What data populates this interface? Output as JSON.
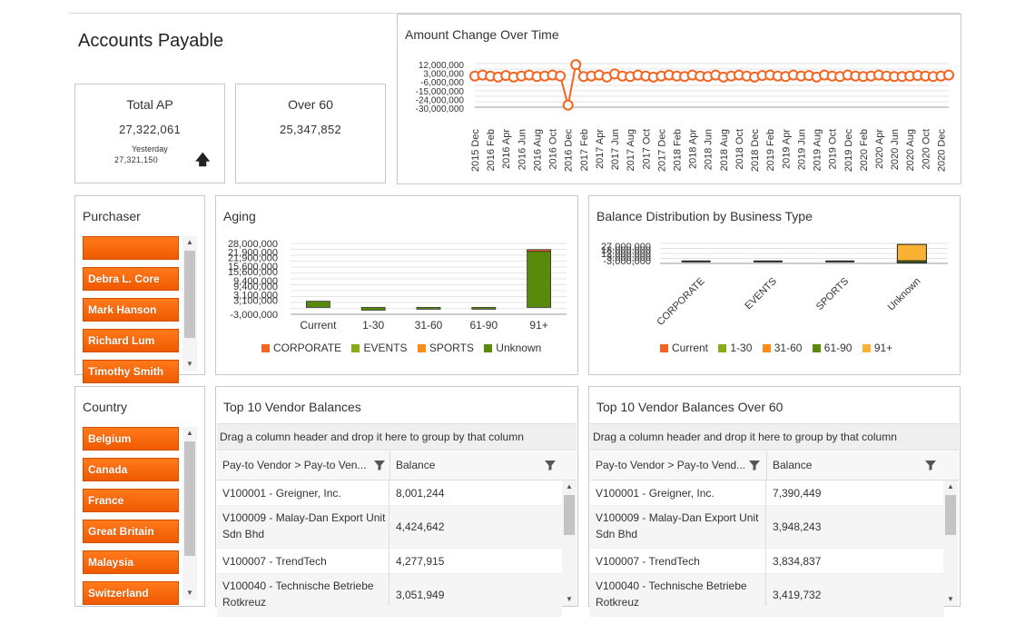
{
  "page": {
    "title": "Accounts Payable"
  },
  "kpis": {
    "total_ap": {
      "label": "Total AP",
      "value": "27,322,061",
      "yesterday_label": "Yesterday",
      "yesterday_value": "27,321,150",
      "trend": "up"
    },
    "over_60": {
      "label": "Over 60",
      "value": "25,347,852"
    }
  },
  "colors": {
    "accent": "#f26522",
    "olive": "#8bab1c",
    "green": "#5a8a0c",
    "orange": "#ff8c1a",
    "gold": "#f9b234"
  },
  "purchaser": {
    "title": "Purchaser",
    "items": [
      "",
      "Debra L. Core",
      "Mark Hanson",
      "Richard Lum",
      "Timothy Smith"
    ]
  },
  "country": {
    "title": "Country",
    "items": [
      "Belgium",
      "Canada",
      "France",
      "Great Britain",
      "Malaysia",
      "Switzerland"
    ]
  },
  "amount_chart": {
    "title": "Amount Change Over Time",
    "y_ticks": [
      "12,000,000",
      "3,000,000",
      "-6,000,000",
      "-15,000,000",
      "-24,000,000",
      "-30,000,000"
    ],
    "x_ticks": [
      "2015 Dec",
      "2016 Feb",
      "2016 Apr",
      "2016 Jun",
      "2016 Aug",
      "2016 Oct",
      "2016 Dec",
      "2017 Feb",
      "2017 Apr",
      "2017 Jun",
      "2017 Aug",
      "2017 Oct",
      "2017 Dec",
      "2018 Feb",
      "2018 Apr",
      "2018 Jun",
      "2018 Aug",
      "2018 Oct",
      "2018 Dec",
      "2019 Feb",
      "2019 Apr",
      "2019 Jun",
      "2019 Aug",
      "2019 Oct",
      "2019 Dec",
      "2020 Feb",
      "2020 Apr",
      "2020 Jun",
      "2020 Aug",
      "2020 Oct",
      "2020 Dec"
    ]
  },
  "aging_chart": {
    "title": "Aging",
    "y_ticks": [
      "28,000,000",
      "21,900,000",
      "15,600,000",
      "9,400,000",
      "3,100,000",
      "-3,000,000"
    ],
    "categories": [
      "Current",
      "1-30",
      "31-60",
      "61-90",
      "91+"
    ],
    "legend": [
      "CORPORATE",
      "EVENTS",
      "SPORTS",
      "Unknown"
    ]
  },
  "balance_chart": {
    "title": "Balance Distribution by Business Type",
    "y_ticks": [
      "27,000,000",
      "18,000,000",
      "12,000,000",
      "3,000,000",
      "-3,000,000"
    ],
    "categories": [
      "CORPORATE",
      "EVENTS",
      "SPORTS",
      "Unknown"
    ],
    "legend": [
      "Current",
      "1-30",
      "31-60",
      "61-90",
      "91+"
    ]
  },
  "chart_data": [
    {
      "type": "line",
      "title": "Amount Change Over Time",
      "x": [
        "2015 Dec",
        "2016 Jan",
        "2016 Feb",
        "2016 Mar",
        "2016 Apr",
        "2016 May",
        "2016 Jun",
        "2016 Jul",
        "2016 Aug",
        "2016 Sep",
        "2016 Oct",
        "2016 Nov",
        "2016 Dec",
        "2017 Jan",
        "2017 Feb",
        "2017 Mar",
        "2017 Apr",
        "2017 May",
        "2017 Jun",
        "2017 Jul",
        "2017 Aug",
        "2017 Sep",
        "2017 Oct",
        "2017 Nov",
        "2017 Dec",
        "2018 Jan",
        "2018 Feb",
        "2018 Mar",
        "2018 Apr",
        "2018 May",
        "2018 Jun",
        "2018 Jul",
        "2018 Aug",
        "2018 Sep",
        "2018 Oct",
        "2018 Nov",
        "2018 Dec",
        "2019 Jan",
        "2019 Feb",
        "2019 Mar",
        "2019 Apr",
        "2019 May",
        "2019 Jun",
        "2019 Jul",
        "2019 Aug",
        "2019 Sep",
        "2019 Oct",
        "2019 Nov",
        "2019 Dec",
        "2020 Jan",
        "2020 Feb",
        "2020 Mar",
        "2020 Apr",
        "2020 May",
        "2020 Jun",
        "2020 Jul",
        "2020 Aug",
        "2020 Sep",
        "2020 Oct",
        "2020 Nov",
        "2020 Dec",
        "2021 Jan"
      ],
      "values": [
        0,
        1000000,
        0,
        -1000000,
        500000,
        -1000000,
        0,
        1000000,
        -500000,
        0,
        1000000,
        0,
        -28000000,
        11000000,
        -500000,
        0,
        1000000,
        -1000000,
        2000000,
        0,
        -500000,
        1000000,
        0,
        -1000000,
        0,
        1000000,
        0,
        -500000,
        1000000,
        0,
        -500000,
        1000000,
        -1000000,
        0,
        1000000,
        0,
        -1000000,
        500000,
        1000000,
        0,
        -500000,
        1000000,
        0,
        500000,
        -1000000,
        1000000,
        0,
        -500000,
        1000000,
        0,
        -500000,
        0,
        1000000,
        0,
        -500000,
        -500000,
        0,
        500000,
        0,
        -500000,
        0,
        1000000
      ],
      "ylim": [
        -30000000,
        12000000
      ]
    },
    {
      "type": "bar",
      "title": "Aging",
      "categories": [
        "Current",
        "1-30",
        "31-60",
        "61-90",
        "91+"
      ],
      "series": [
        {
          "name": "CORPORATE",
          "values": [
            0,
            0,
            0,
            0,
            800000
          ]
        },
        {
          "name": "EVENTS",
          "values": [
            0,
            0,
            0,
            0,
            0
          ]
        },
        {
          "name": "SPORTS",
          "values": [
            0,
            0,
            0,
            0,
            0
          ]
        },
        {
          "name": "Unknown",
          "values": [
            2700000,
            -1200000,
            -300000,
            -300000,
            24500000
          ]
        }
      ],
      "ylim": [
        -3000000,
        28000000
      ]
    },
    {
      "type": "bar",
      "title": "Balance Distribution by Business Type",
      "categories": [
        "CORPORATE",
        "EVENTS",
        "SPORTS",
        "Unknown"
      ],
      "series": [
        {
          "name": "Current",
          "values": [
            0,
            0,
            0,
            500000
          ]
        },
        {
          "name": "1-30",
          "values": [
            0,
            0,
            0,
            0
          ]
        },
        {
          "name": "31-60",
          "values": [
            0,
            0,
            0,
            0
          ]
        },
        {
          "name": "61-90",
          "values": [
            0,
            0,
            0,
            500000
          ]
        },
        {
          "name": "91+",
          "values": [
            0,
            0,
            0,
            24500000
          ]
        }
      ],
      "ylim": [
        -3000000,
        27000000
      ]
    }
  ],
  "vendor_grid": {
    "title": "Top 10 Vendor Balances",
    "group_hint": "Drag a column header and drop it here to group by that column",
    "col1": "Pay-to Vendor > Pay-to Ven...",
    "col2": "Balance",
    "rows": [
      {
        "vendor": "V100001 - Greigner, Inc.",
        "balance": "8,001,244"
      },
      {
        "vendor": "V100009 - Malay-Dan Export Unit Sdn Bhd",
        "balance": "4,424,642"
      },
      {
        "vendor": "V100007 - TrendTech",
        "balance": "4,277,915"
      },
      {
        "vendor": "V100040 - Technische Betriebe Rotkreuz",
        "balance": "3,051,949"
      }
    ]
  },
  "vendor_grid_60": {
    "title": "Top 10 Vendor Balances Over 60",
    "group_hint": "Drag a column header and drop it here to group by that column",
    "col1": "Pay-to Vendor > Pay-to Vend...",
    "col2": "Balance",
    "rows": [
      {
        "vendor": "V100001 - Greigner, Inc.",
        "balance": "7,390,449"
      },
      {
        "vendor": "V100009 - Malay-Dan Export Unit Sdn Bhd",
        "balance": "3,948,243"
      },
      {
        "vendor": "V100007 - TrendTech",
        "balance": "3,834,837"
      },
      {
        "vendor": "V100040 - Technische Betriebe Rotkreuz",
        "balance": "3,419,732"
      }
    ]
  }
}
